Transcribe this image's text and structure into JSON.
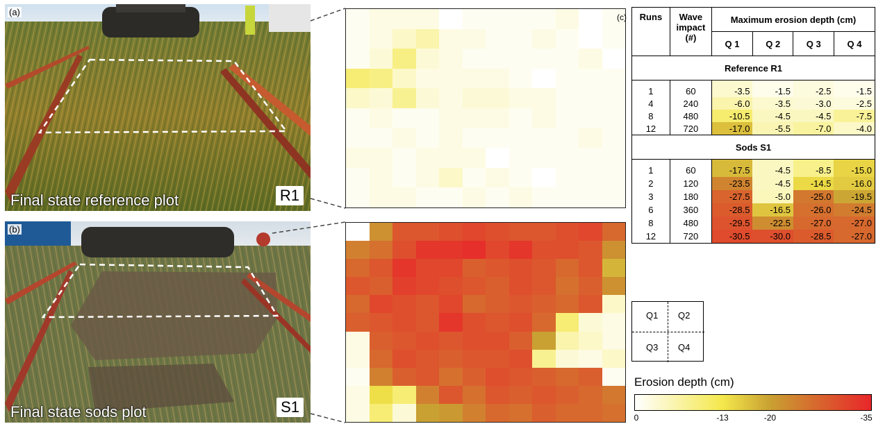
{
  "panels": {
    "a": {
      "letter": "(a)",
      "caption": "Final state reference plot",
      "tag": "R1"
    },
    "b": {
      "letter": "(b)",
      "caption": "Final state sods plot",
      "tag": "S1"
    },
    "c": {
      "letter": "(c)"
    }
  },
  "table": {
    "headers": {
      "runs": "Runs",
      "wave_impact": "Wave impact (#)",
      "max_erosion": "Maximum erosion depth (cm)",
      "quadrants": [
        "Q 1",
        "Q 2",
        "Q 3",
        "Q 4"
      ]
    },
    "sections": [
      {
        "title": "Reference R1",
        "rows": [
          {
            "run": "1",
            "impact": "60",
            "values": [
              "-3.5",
              "-1.5",
              "-2.5",
              "-1.5"
            ]
          },
          {
            "run": "4",
            "impact": "240",
            "values": [
              "-6.0",
              "-3.5",
              "-3.0",
              "-2.5"
            ]
          },
          {
            "run": "8",
            "impact": "480",
            "values": [
              "-10.5",
              "-4.5",
              "-4.5",
              "-7.5"
            ]
          },
          {
            "run": "12",
            "impact": "720",
            "values": [
              "-17.0",
              "-5.5",
              "-7.0",
              "-4.0"
            ]
          }
        ]
      },
      {
        "title": "Sods S1",
        "rows": [
          {
            "run": "1",
            "impact": "60",
            "values": [
              "-17.5",
              "-4.5",
              "-8.5",
              "-15.0"
            ]
          },
          {
            "run": "2",
            "impact": "120",
            "values": [
              "-23.5",
              "-4.5",
              "-14.5",
              "-16.0"
            ]
          },
          {
            "run": "3",
            "impact": "180",
            "values": [
              "-27.5",
              "-5.0",
              "-25.0",
              "-19.5"
            ]
          },
          {
            "run": "6",
            "impact": "360",
            "values": [
              "-28.5",
              "-16.5",
              "-26.0",
              "-24.5"
            ]
          },
          {
            "run": "8",
            "impact": "480",
            "values": [
              "-29.5",
              "-22.5",
              "-27.0",
              "-27.0"
            ]
          },
          {
            "run": "12",
            "impact": "720",
            "values": [
              "-30.5",
              "-30.0",
              "-28.5",
              "-27.0"
            ]
          }
        ]
      }
    ]
  },
  "quadrant_key": [
    "Q1",
    "Q2",
    "Q3",
    "Q4"
  ],
  "legend": {
    "title": "Erosion depth (cm)",
    "ticks": [
      {
        "label": "0",
        "value": 0
      },
      {
        "label": "-13",
        "value": -13
      },
      {
        "label": "-20",
        "value": -20
      },
      {
        "label": "-35",
        "value": -35
      }
    ],
    "colors": [
      "#ffffff",
      "#f4e84c",
      "#c9a132",
      "#e8262a"
    ]
  },
  "chart_data": [
    {
      "type": "heatmap",
      "name_ref": "R1",
      "rows": 10,
      "cols": 12,
      "values": [
        [
          -1,
          -2,
          -2,
          -2,
          0,
          -1,
          -1,
          -1,
          -1,
          -2,
          0,
          -1
        ],
        [
          -1,
          -2,
          -4,
          -6,
          -2,
          -2,
          -1,
          -1,
          -2,
          -1,
          0,
          -1
        ],
        [
          -1,
          -3,
          -9,
          -3,
          -2,
          -1,
          -1,
          -1,
          -1,
          -1,
          -2,
          0
        ],
        [
          -10,
          -9,
          -4,
          -2,
          -2,
          -2,
          -2,
          -1,
          0,
          -1,
          -1,
          -1
        ],
        [
          -4,
          -3,
          -8,
          -3,
          -2,
          -3,
          -3,
          -2,
          -2,
          -1,
          -1,
          -1
        ],
        [
          -1,
          -2,
          -1,
          -1,
          -2,
          -2,
          -2,
          -1,
          -2,
          -1,
          -1,
          -1
        ],
        [
          -1,
          -1,
          -2,
          -1,
          -2,
          -1,
          -1,
          -1,
          -1,
          -1,
          -2,
          -1
        ],
        [
          -2,
          -2,
          -1,
          -2,
          -2,
          -2,
          0,
          -1,
          -1,
          -1,
          -1,
          -1
        ],
        [
          -1,
          -2,
          -1,
          -2,
          -4,
          -1,
          -2,
          -1,
          0,
          -1,
          -1,
          -1
        ],
        [
          -1,
          -2,
          -2,
          -1,
          -1,
          -2,
          -1,
          -2,
          -1,
          -1,
          -1,
          -1
        ]
      ]
    },
    {
      "type": "heatmap",
      "name_ref": "S1",
      "rows": 11,
      "cols": 12,
      "values": [
        [
          0,
          -22,
          -29,
          -29,
          -30,
          -31,
          -30,
          -29,
          -29,
          -30,
          -31,
          -27
        ],
        [
          -24,
          -26,
          -30,
          -33,
          -33,
          -34,
          -31,
          -33,
          -30,
          -30,
          -29,
          -22
        ],
        [
          -27,
          -29,
          -33,
          -31,
          -31,
          -28,
          -29,
          -30,
          -29,
          -27,
          -29,
          -18
        ],
        [
          -29,
          -28,
          -32,
          -31,
          -30,
          -29,
          -28,
          -30,
          -29,
          -26,
          -28,
          -22
        ],
        [
          -27,
          -31,
          -30,
          -29,
          -31,
          -27,
          -28,
          -29,
          -28,
          -27,
          -29,
          -4
        ],
        [
          -28,
          -29,
          -30,
          -29,
          -33,
          -30,
          -29,
          -30,
          -27,
          -10,
          -3,
          -2
        ],
        [
          -2,
          -28,
          -29,
          -30,
          -29,
          -30,
          -30,
          -28,
          -20,
          -6,
          -4,
          -2
        ],
        [
          -2,
          -27,
          -30,
          -29,
          -28,
          -29,
          -29,
          -30,
          -8,
          -3,
          -2,
          -4
        ],
        [
          -1,
          -24,
          -28,
          -29,
          -26,
          -28,
          -30,
          -29,
          -28,
          -27,
          -28,
          -1
        ],
        [
          -2,
          -14,
          -10,
          -24,
          -29,
          -26,
          -29,
          -28,
          -29,
          -28,
          -27,
          -25
        ],
        [
          -2,
          -10,
          -3,
          -20,
          -21,
          -24,
          -27,
          -26,
          -28,
          -27,
          -27,
          -26
        ]
      ]
    }
  ]
}
